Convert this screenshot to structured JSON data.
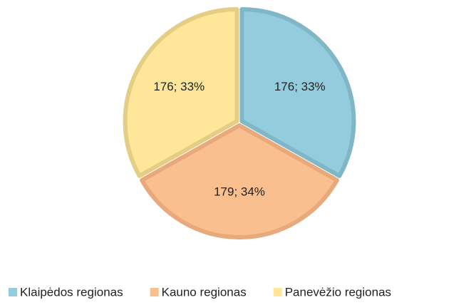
{
  "chart_data": {
    "type": "pie",
    "categories": [
      "Klaipėdos regionas",
      "Kauno regionas",
      "Panevėžio regionas"
    ],
    "values": [
      176,
      179,
      176
    ],
    "value_labels": [
      "176; 33%",
      "179; 34%",
      "176; 33%"
    ],
    "colors": [
      "#93cddd",
      "#f9bf8f",
      "#ffe699"
    ],
    "border_colors": [
      "#7fb7c6",
      "#e8a97c",
      "#e4cd85"
    ],
    "legend": "bottom"
  }
}
